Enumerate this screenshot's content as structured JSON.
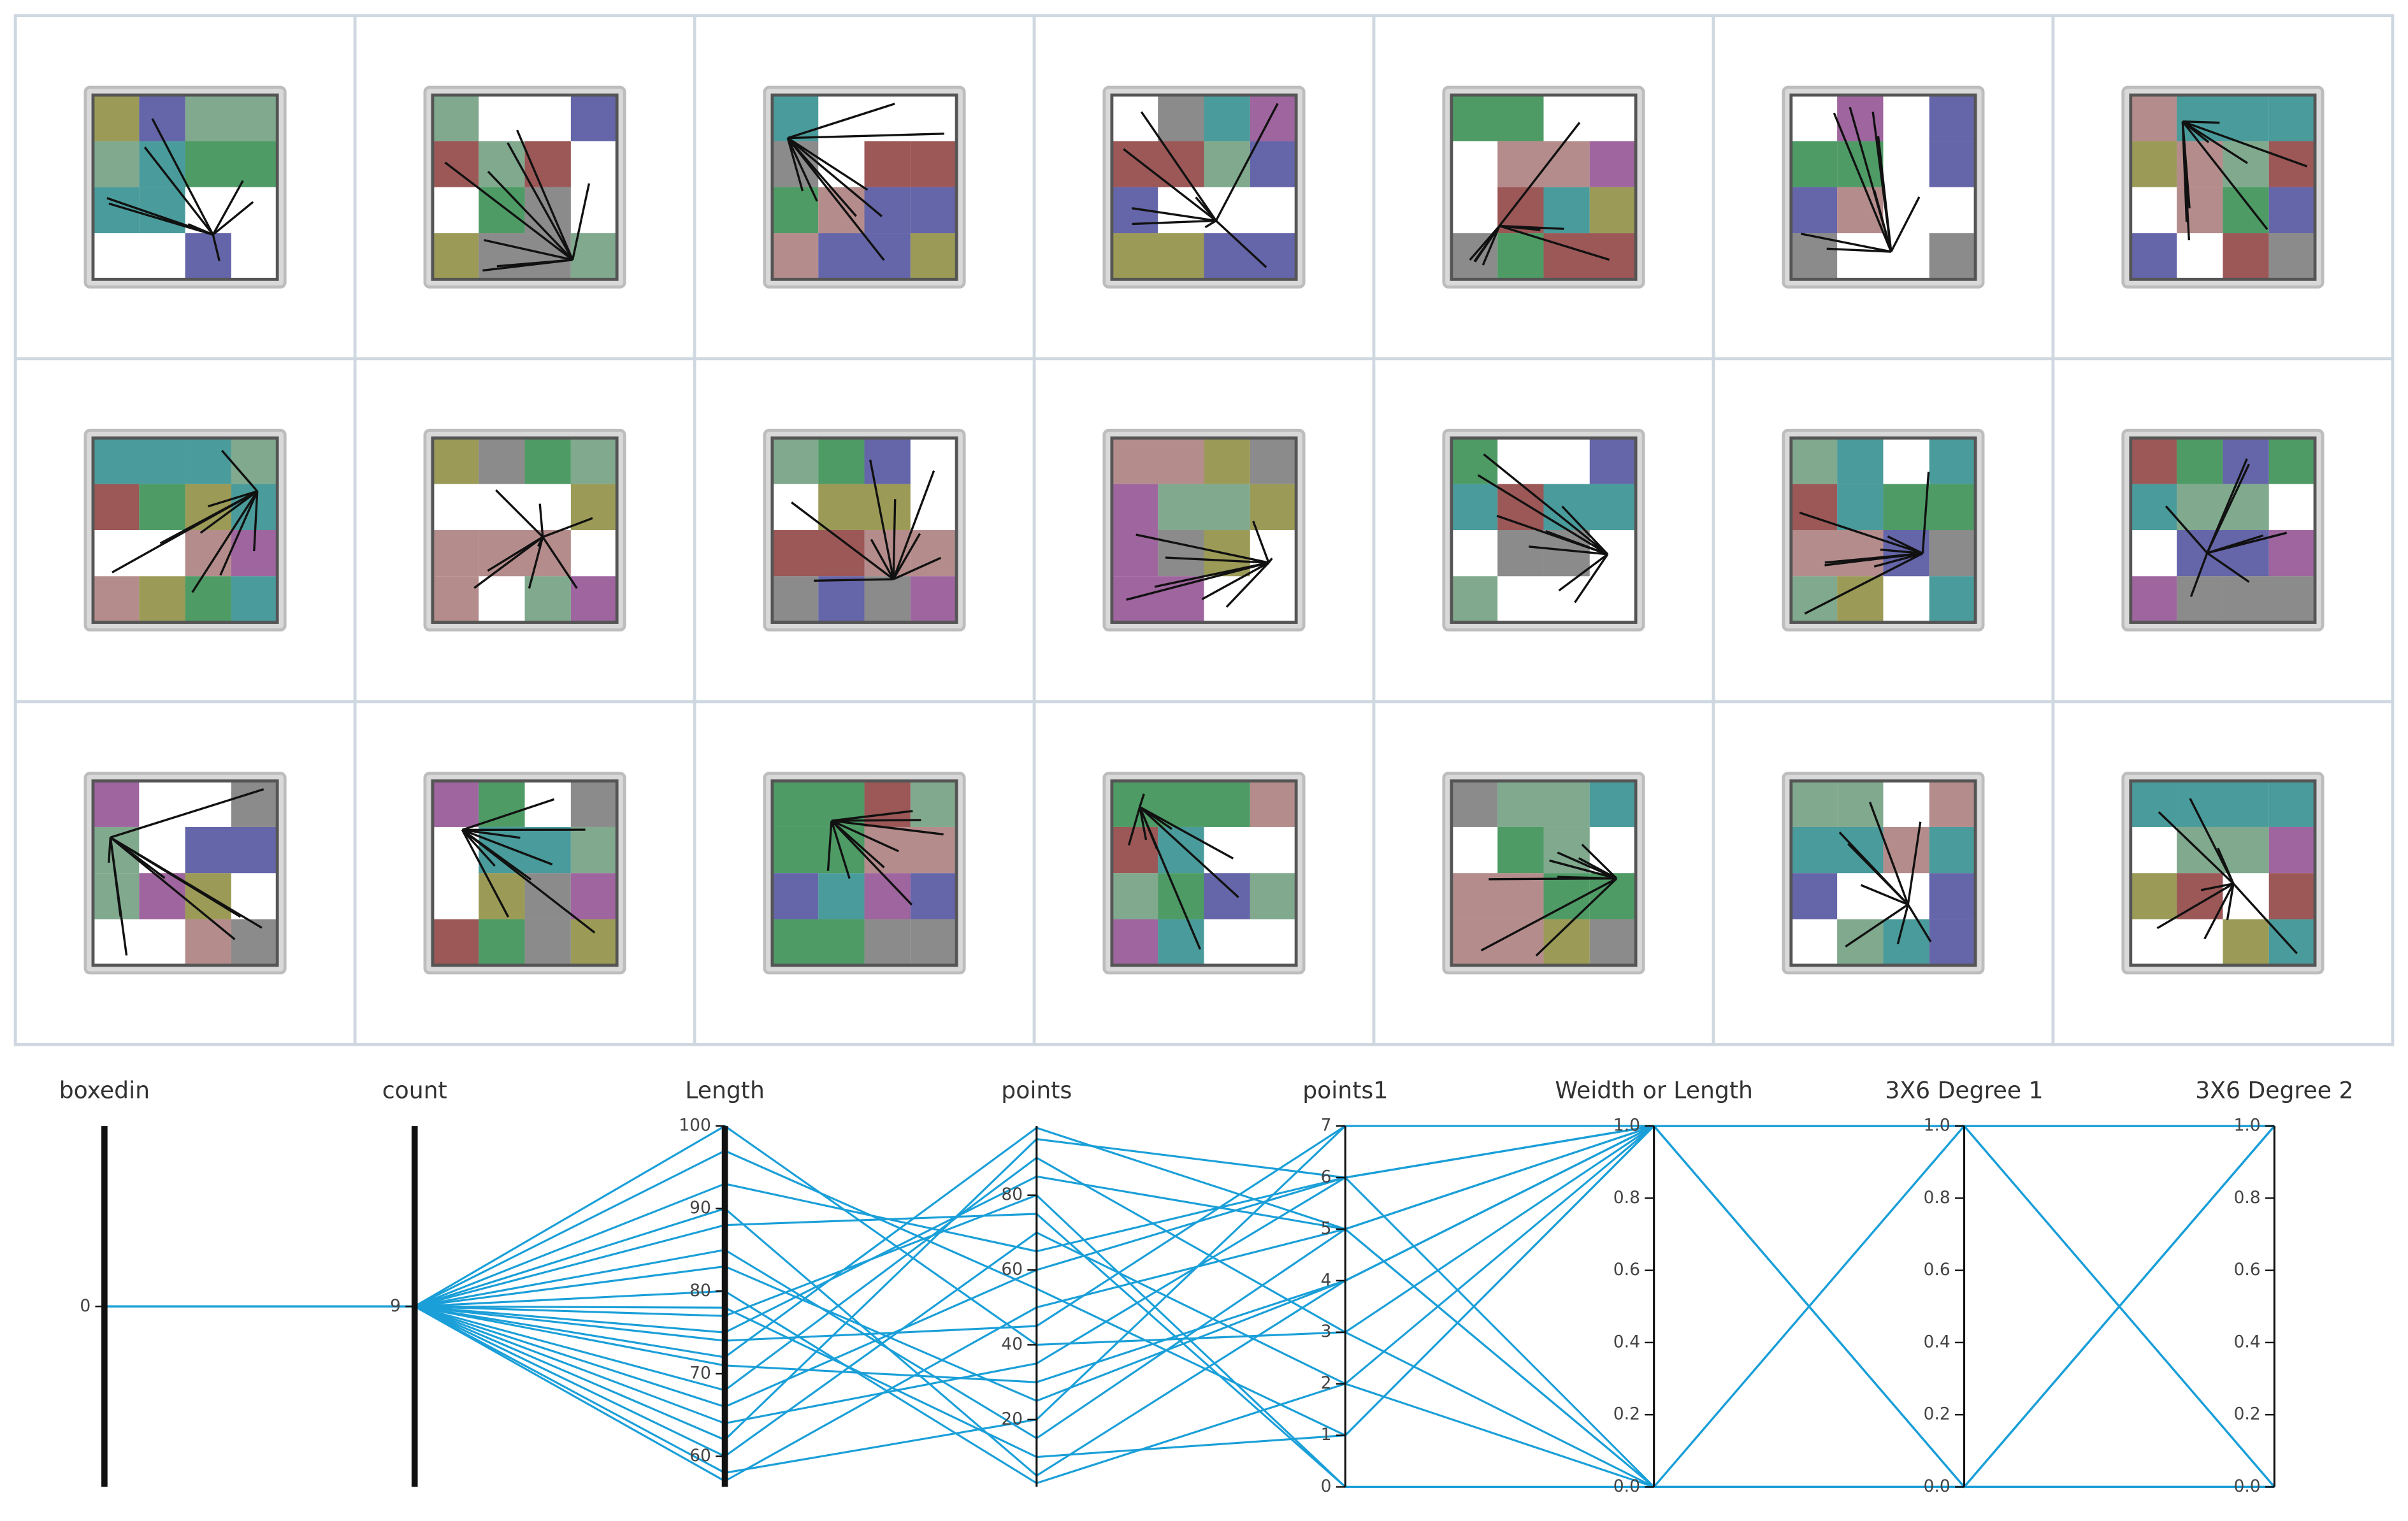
{
  "parallel_coordinates": {
    "type": "parallel",
    "color": "#1a9fd8",
    "axes": [
      {
        "name": "boxedin",
        "lim": [
          -1,
          1
        ],
        "ticks": [
          0
        ]
      },
      {
        "name": "count",
        "lim": [
          8,
          10
        ],
        "ticks": [
          9
        ]
      },
      {
        "name": "Length",
        "lim": [
          56.3,
          100
        ],
        "ticks": [
          60,
          70,
          80,
          90,
          100
        ]
      },
      {
        "name": "points",
        "lim": [
          2,
          98.5
        ],
        "ticks": [
          20,
          40,
          60,
          80
        ]
      },
      {
        "name": "points1",
        "lim": [
          0,
          7
        ],
        "ticks": [
          0,
          1,
          2,
          3,
          4,
          5,
          6,
          7
        ]
      },
      {
        "name": "Weidth or Length",
        "lim": [
          0,
          1
        ],
        "ticks": [
          {
            "value": 0,
            "label": "0.0"
          },
          0.2,
          0.4,
          0.6,
          0.8,
          {
            "value": 1,
            "label": "1.0"
          }
        ]
      },
      {
        "name": "3X6 Degree 1",
        "lim": [
          0,
          1
        ],
        "ticks": [
          {
            "value": 0,
            "label": "0.0"
          },
          0.2,
          0.4,
          0.6,
          0.8,
          {
            "value": 1,
            "label": "1.0"
          }
        ]
      },
      {
        "name": "3X6 Degree 2",
        "lim": [
          0,
          1
        ],
        "ticks": [
          {
            "value": 0,
            "label": "0.0"
          },
          0.2,
          0.4,
          0.6,
          0.8,
          {
            "value": 1,
            "label": "1.0"
          }
        ]
      }
    ],
    "rows": [
      [
        0,
        9,
        62,
        95,
        6,
        1,
        0,
        1
      ],
      [
        0,
        9,
        58,
        20,
        7,
        1,
        1,
        0
      ],
      [
        0,
        9,
        75,
        85,
        5,
        0,
        0,
        0
      ],
      [
        0,
        9,
        100,
        40,
        3,
        1,
        1,
        1
      ],
      [
        0,
        9,
        80,
        3,
        2,
        0,
        0,
        1
      ],
      [
        0,
        9,
        66,
        60,
        6,
        1,
        0,
        0
      ],
      [
        0,
        9,
        71,
        30,
        4,
        1,
        1,
        1
      ],
      [
        0,
        9,
        88,
        75,
        0,
        0,
        1,
        1
      ],
      [
        0,
        9,
        57,
        50,
        5,
        1,
        0,
        1
      ],
      [
        0,
        9,
        78,
        10,
        1,
        1,
        1,
        0
      ],
      [
        0,
        9,
        93,
        65,
        6,
        0,
        0,
        0
      ],
      [
        0,
        9,
        83,
        25,
        4,
        1,
        1,
        1
      ],
      [
        0,
        9,
        68,
        90,
        3,
        0,
        1,
        0
      ],
      [
        0,
        9,
        74,
        45,
        7,
        1,
        0,
        1
      ],
      [
        0,
        9,
        60,
        70,
        2,
        1,
        1,
        0
      ],
      [
        0,
        9,
        85,
        15,
        5,
        0,
        0,
        1
      ],
      [
        0,
        9,
        97,
        55,
        1,
        1,
        0,
        0
      ],
      [
        0,
        9,
        64,
        35,
        6,
        1,
        1,
        1
      ],
      [
        0,
        9,
        77,
        80,
        0,
        0,
        1,
        0
      ],
      [
        0,
        9,
        90,
        5,
        4,
        1,
        0,
        1
      ],
      [
        0,
        9,
        72,
        98,
        5,
        1,
        1,
        1
      ]
    ]
  }
}
